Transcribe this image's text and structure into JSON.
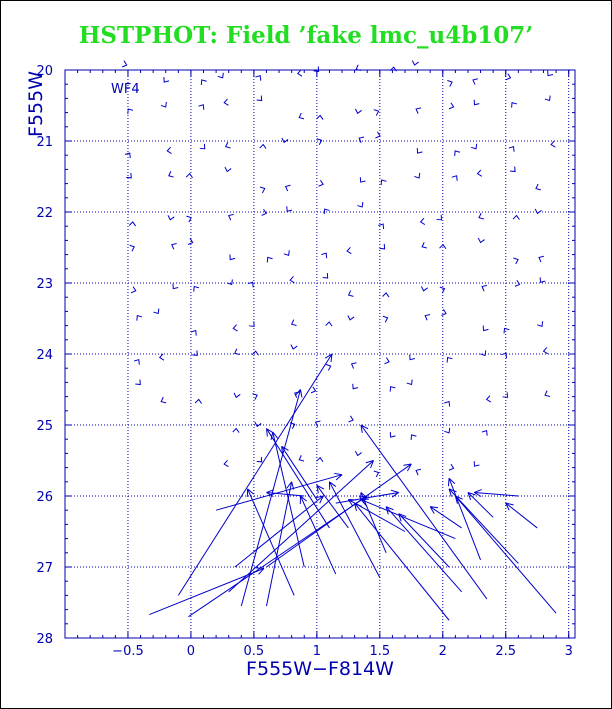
{
  "title": "HSTPHOT: Field ’fake lmc_u4b107’",
  "colors": {
    "title": "#22dd22",
    "axes": "#0000b0",
    "data": "#0000cc",
    "frame": "#000000"
  },
  "chart_data": {
    "type": "quiver",
    "title": "HSTPHOT: Field ’fake lmc_u4b107’",
    "xlabel": "F555W−F814W",
    "ylabel": "F555W",
    "xlim": [
      -1.0,
      3.05
    ],
    "ylim": [
      28,
      20
    ],
    "y_inverted": true,
    "grid": true,
    "grid_style": "dotted",
    "x_grid": [
      -0.5,
      0,
      0.5,
      1,
      1.5,
      2,
      2.5,
      3
    ],
    "y_grid": [
      21,
      22,
      23,
      24,
      25,
      26,
      27
    ],
    "x_ticks": [
      -0.5,
      0,
      0.5,
      1,
      1.5,
      2,
      2.5,
      3
    ],
    "x_tick_labels": [
      "−0.5",
      "0",
      "0.5",
      "1",
      "1.5",
      "2",
      "2.5",
      "3"
    ],
    "y_ticks": [
      20,
      21,
      22,
      23,
      24,
      25,
      26,
      27,
      28
    ],
    "y_tick_labels": [
      "20",
      "21",
      "22",
      "23",
      "24",
      "25",
      "26",
      "27",
      "28"
    ],
    "annotation": "WF4",
    "arrows": [
      {
        "x0": -0.33,
        "y0": 27.67,
        "x1": 0.58,
        "y1": 27.02
      },
      {
        "x0": -0.1,
        "y0": 27.4,
        "x1": 1.12,
        "y1": 24.0
      },
      {
        "x0": -0.02,
        "y0": 27.7,
        "x1": 1.4,
        "y1": 26.0
      },
      {
        "x0": 0.4,
        "y0": 27.55,
        "x1": 0.87,
        "y1": 24.5
      },
      {
        "x0": 0.6,
        "y0": 27.0,
        "x1": 1.75,
        "y1": 25.55
      },
      {
        "x0": 0.6,
        "y0": 27.55,
        "x1": 0.8,
        "y1": 25.8
      },
      {
        "x0": 0.3,
        "y0": 27.35,
        "x1": 1.45,
        "y1": 25.5
      },
      {
        "x0": 0.82,
        "y0": 27.4,
        "x1": 0.45,
        "y1": 25.9
      },
      {
        "x0": 0.9,
        "y0": 27.0,
        "x1": 0.65,
        "y1": 25.1
      },
      {
        "x0": 1.15,
        "y0": 27.1,
        "x1": 0.87,
        "y1": 26.0
      },
      {
        "x0": 1.5,
        "y0": 27.15,
        "x1": 1.1,
        "y1": 25.8
      },
      {
        "x0": 0.2,
        "y0": 26.2,
        "x1": 1.2,
        "y1": 25.7
      },
      {
        "x0": 0.35,
        "y0": 27.0,
        "x1": 1.05,
        "y1": 26.0
      },
      {
        "x0": 1.0,
        "y0": 26.05,
        "x1": 0.72,
        "y1": 25.3
      },
      {
        "x0": 1.1,
        "y0": 26.45,
        "x1": 0.6,
        "y1": 25.05
      },
      {
        "x0": 1.25,
        "y0": 26.45,
        "x1": 1.0,
        "y1": 25.85
      },
      {
        "x0": 1.55,
        "y0": 26.8,
        "x1": 1.35,
        "y1": 25.95
      },
      {
        "x0": 1.7,
        "y0": 26.5,
        "x1": 1.25,
        "y1": 26.05
      },
      {
        "x0": 2.1,
        "y0": 26.6,
        "x1": 1.35,
        "y1": 26.05
      },
      {
        "x0": 1.15,
        "y0": 26.1,
        "x1": 1.65,
        "y1": 25.95
      },
      {
        "x0": 2.05,
        "y0": 27.75,
        "x1": 1.3,
        "y1": 26.1
      },
      {
        "x0": 2.15,
        "y0": 27.35,
        "x1": 1.55,
        "y1": 26.15
      },
      {
        "x0": 2.05,
        "y0": 27.0,
        "x1": 1.65,
        "y1": 26.25
      },
      {
        "x0": 2.35,
        "y0": 27.45,
        "x1": 1.35,
        "y1": 25.0
      },
      {
        "x0": 2.3,
        "y0": 26.9,
        "x1": 2.05,
        "y1": 25.75
      },
      {
        "x0": 2.6,
        "y0": 26.95,
        "x1": 2.05,
        "y1": 25.9
      },
      {
        "x0": 2.9,
        "y0": 27.65,
        "x1": 2.1,
        "y1": 26.0
      },
      {
        "x0": 2.15,
        "y0": 26.45,
        "x1": 1.9,
        "y1": 26.15
      },
      {
        "x0": 2.4,
        "y0": 26.3,
        "x1": 2.2,
        "y1": 25.95
      },
      {
        "x0": 2.75,
        "y0": 26.45,
        "x1": 2.5,
        "y1": 26.1
      },
      {
        "x0": 2.6,
        "y0": 26.0,
        "x1": 2.25,
        "y1": 25.95
      },
      {
        "x0": 0.9,
        "y0": 26.0,
        "x1": 0.6,
        "y1": 25.95
      }
    ]
  }
}
